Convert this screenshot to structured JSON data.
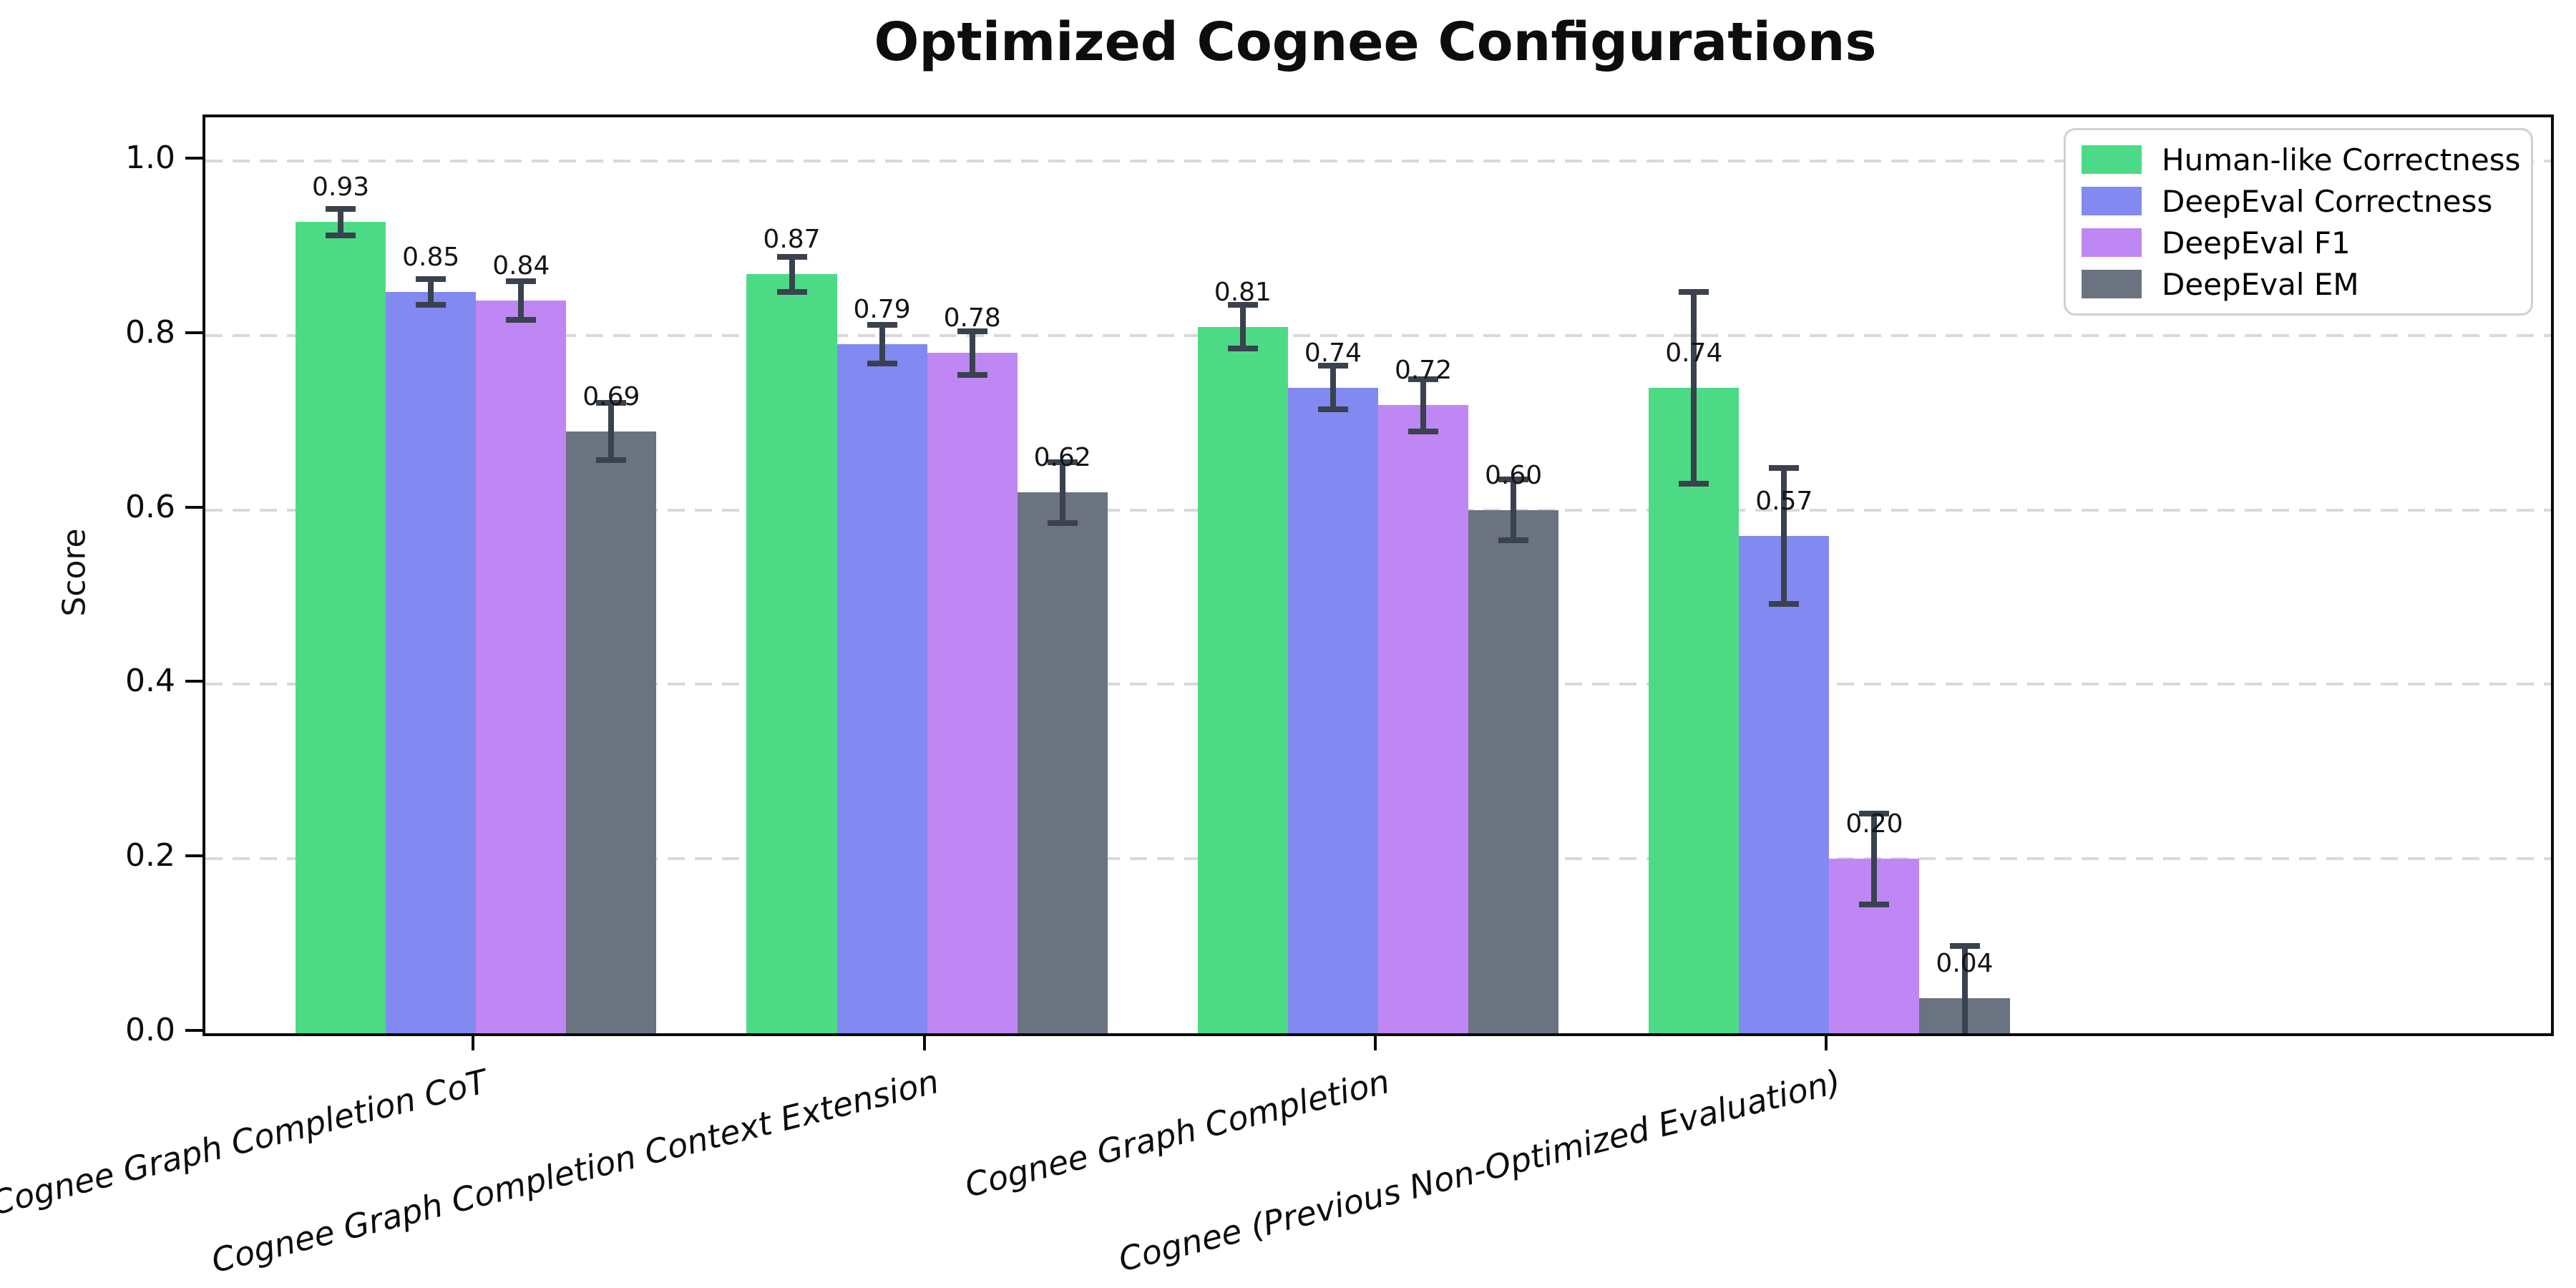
{
  "chart_data": {
    "type": "bar",
    "title": "Optimized Cognee Configurations",
    "xlabel": "",
    "ylabel": "Score",
    "ylim": [
      0,
      1.05
    ],
    "yticks": [
      "0.0",
      "0.2",
      "0.4",
      "0.6",
      "0.8",
      "1.0"
    ],
    "grid": "horizontal dashed gridlines",
    "legend_position": "upper right",
    "categories": [
      "Cognee Graph Completion CoT",
      "Cognee Graph Completion Context Extension",
      "Cognee Graph Completion",
      "Cognee (Previous Non-Optimized Evaluation)"
    ],
    "series": [
      {
        "name": "Human-like Correctness",
        "color": "#4cdb84",
        "values": [
          0.93,
          0.87,
          0.81,
          0.74
        ],
        "errors": [
          0.015,
          0.02,
          0.025,
          0.11
        ]
      },
      {
        "name": "DeepEval Correctness",
        "color": "#8289f0",
        "values": [
          0.85,
          0.79,
          0.74,
          0.57
        ],
        "errors": [
          0.015,
          0.022,
          0.025,
          0.078
        ]
      },
      {
        "name": "DeepEval F1",
        "color": "#bf87f3",
        "values": [
          0.84,
          0.78,
          0.72,
          0.2
        ],
        "errors": [
          0.022,
          0.025,
          0.03,
          0.052
        ]
      },
      {
        "name": "DeepEval EM",
        "color": "#6b7280",
        "values": [
          0.69,
          0.62,
          0.6,
          0.04
        ],
        "errors": [
          0.033,
          0.035,
          0.035,
          0.06
        ]
      }
    ],
    "value_label_decimals": 2,
    "colors": {
      "errorbar": "#39424e",
      "gridline": "#d9d9d9",
      "spine": "#0a0a0a",
      "legend_border": "#d0d0d0",
      "background": "#ffffff"
    }
  }
}
